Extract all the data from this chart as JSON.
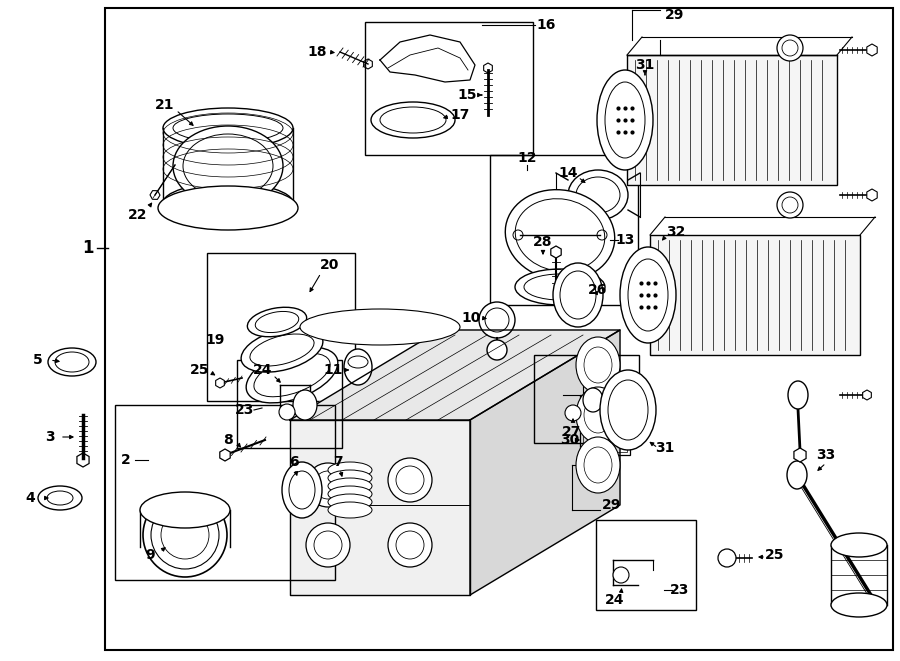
{
  "bg_color": "#ffffff",
  "line_color": "#000000",
  "text_color": "#000000",
  "fig_width": 9.0,
  "fig_height": 6.61
}
